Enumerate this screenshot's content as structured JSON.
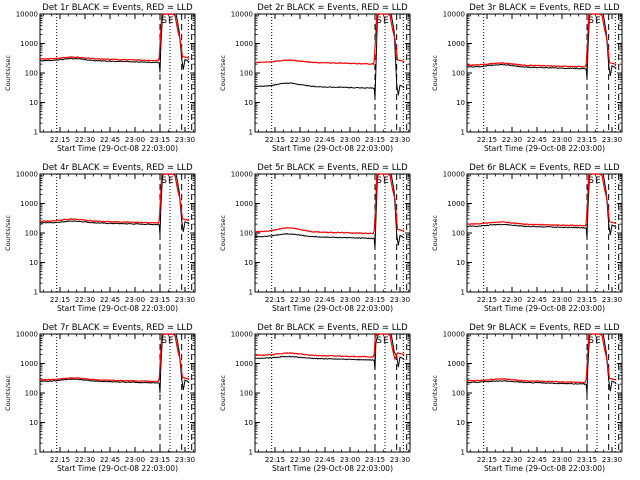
{
  "chart_data": {
    "type": "line",
    "panels": [
      {
        "title": "Det 1r BLACK = Events, RED = LLD",
        "events_level": 260,
        "lld_level": 300,
        "events_bump": 1.18,
        "lld_bump": 1.15
      },
      {
        "title": "Det 2r BLACK = Events, RED = LLD",
        "events_level": 35,
        "lld_level": 230,
        "events_bump": 1.3,
        "lld_bump": 1.18
      },
      {
        "title": "Det 3r BLACK = Events, RED = LLD",
        "events_level": 160,
        "lld_level": 185,
        "events_bump": 1.2,
        "lld_bump": 1.18
      },
      {
        "title": "Det 4r BLACK = Events, RED = LLD",
        "events_level": 220,
        "lld_level": 250,
        "events_bump": 1.15,
        "lld_bump": 1.18
      },
      {
        "title": "Det 5r BLACK = Events, RED = LLD",
        "events_level": 75,
        "lld_level": 110,
        "events_bump": 1.25,
        "lld_bump": 1.35
      },
      {
        "title": "Det 6r BLACK = Events, RED = LLD",
        "events_level": 170,
        "lld_level": 200,
        "events_bump": 1.15,
        "lld_bump": 1.18
      },
      {
        "title": "Det 7r BLACK = Events, RED = LLD",
        "events_level": 250,
        "lld_level": 280,
        "events_bump": 1.18,
        "lld_bump": 1.15
      },
      {
        "title": "Det 8r BLACK = Events, RED = LLD",
        "events_level": 1500,
        "lld_level": 1900,
        "events_bump": 1.15,
        "lld_bump": 1.18
      },
      {
        "title": "Det 9r BLACK = Events, RED = LLD",
        "events_level": 230,
        "lld_level": 260,
        "events_bump": 1.12,
        "lld_bump": 1.15
      }
    ],
    "xlabel": "Start Time (29-Oct-08 22:03:00)",
    "ylabel": "Counts/sec",
    "x_range_minutes": [
      0,
      93
    ],
    "x_ticks": [
      {
        "minute": 12,
        "label": "22:15"
      },
      {
        "minute": 27,
        "label": "22:30"
      },
      {
        "minute": 42,
        "label": "22:45"
      },
      {
        "minute": 57,
        "label": "23:00"
      },
      {
        "minute": 72,
        "label": "23:15"
      },
      {
        "minute": 87,
        "label": "23:30"
      }
    ],
    "y_range": [
      1,
      10000
    ],
    "y_scale": "log",
    "y_ticks": [
      {
        "value": 1,
        "label": "1"
      },
      {
        "value": 10,
        "label": "10"
      },
      {
        "value": 100,
        "label": "100"
      },
      {
        "value": 1000,
        "label": "1000"
      },
      {
        "value": 10000,
        "label": "10000"
      }
    ],
    "dotted_lines_minutes": [
      10,
      78,
      89
    ],
    "dashed_lines_minutes": [
      72,
      85,
      91
    ],
    "markers": [
      {
        "minute": 74.5,
        "label": "S"
      },
      {
        "minute": 78.5,
        "label": "E"
      }
    ],
    "series": [
      {
        "name": "Events",
        "color": "#000000"
      },
      {
        "name": "LLD",
        "color": "#ff0000"
      }
    ]
  }
}
